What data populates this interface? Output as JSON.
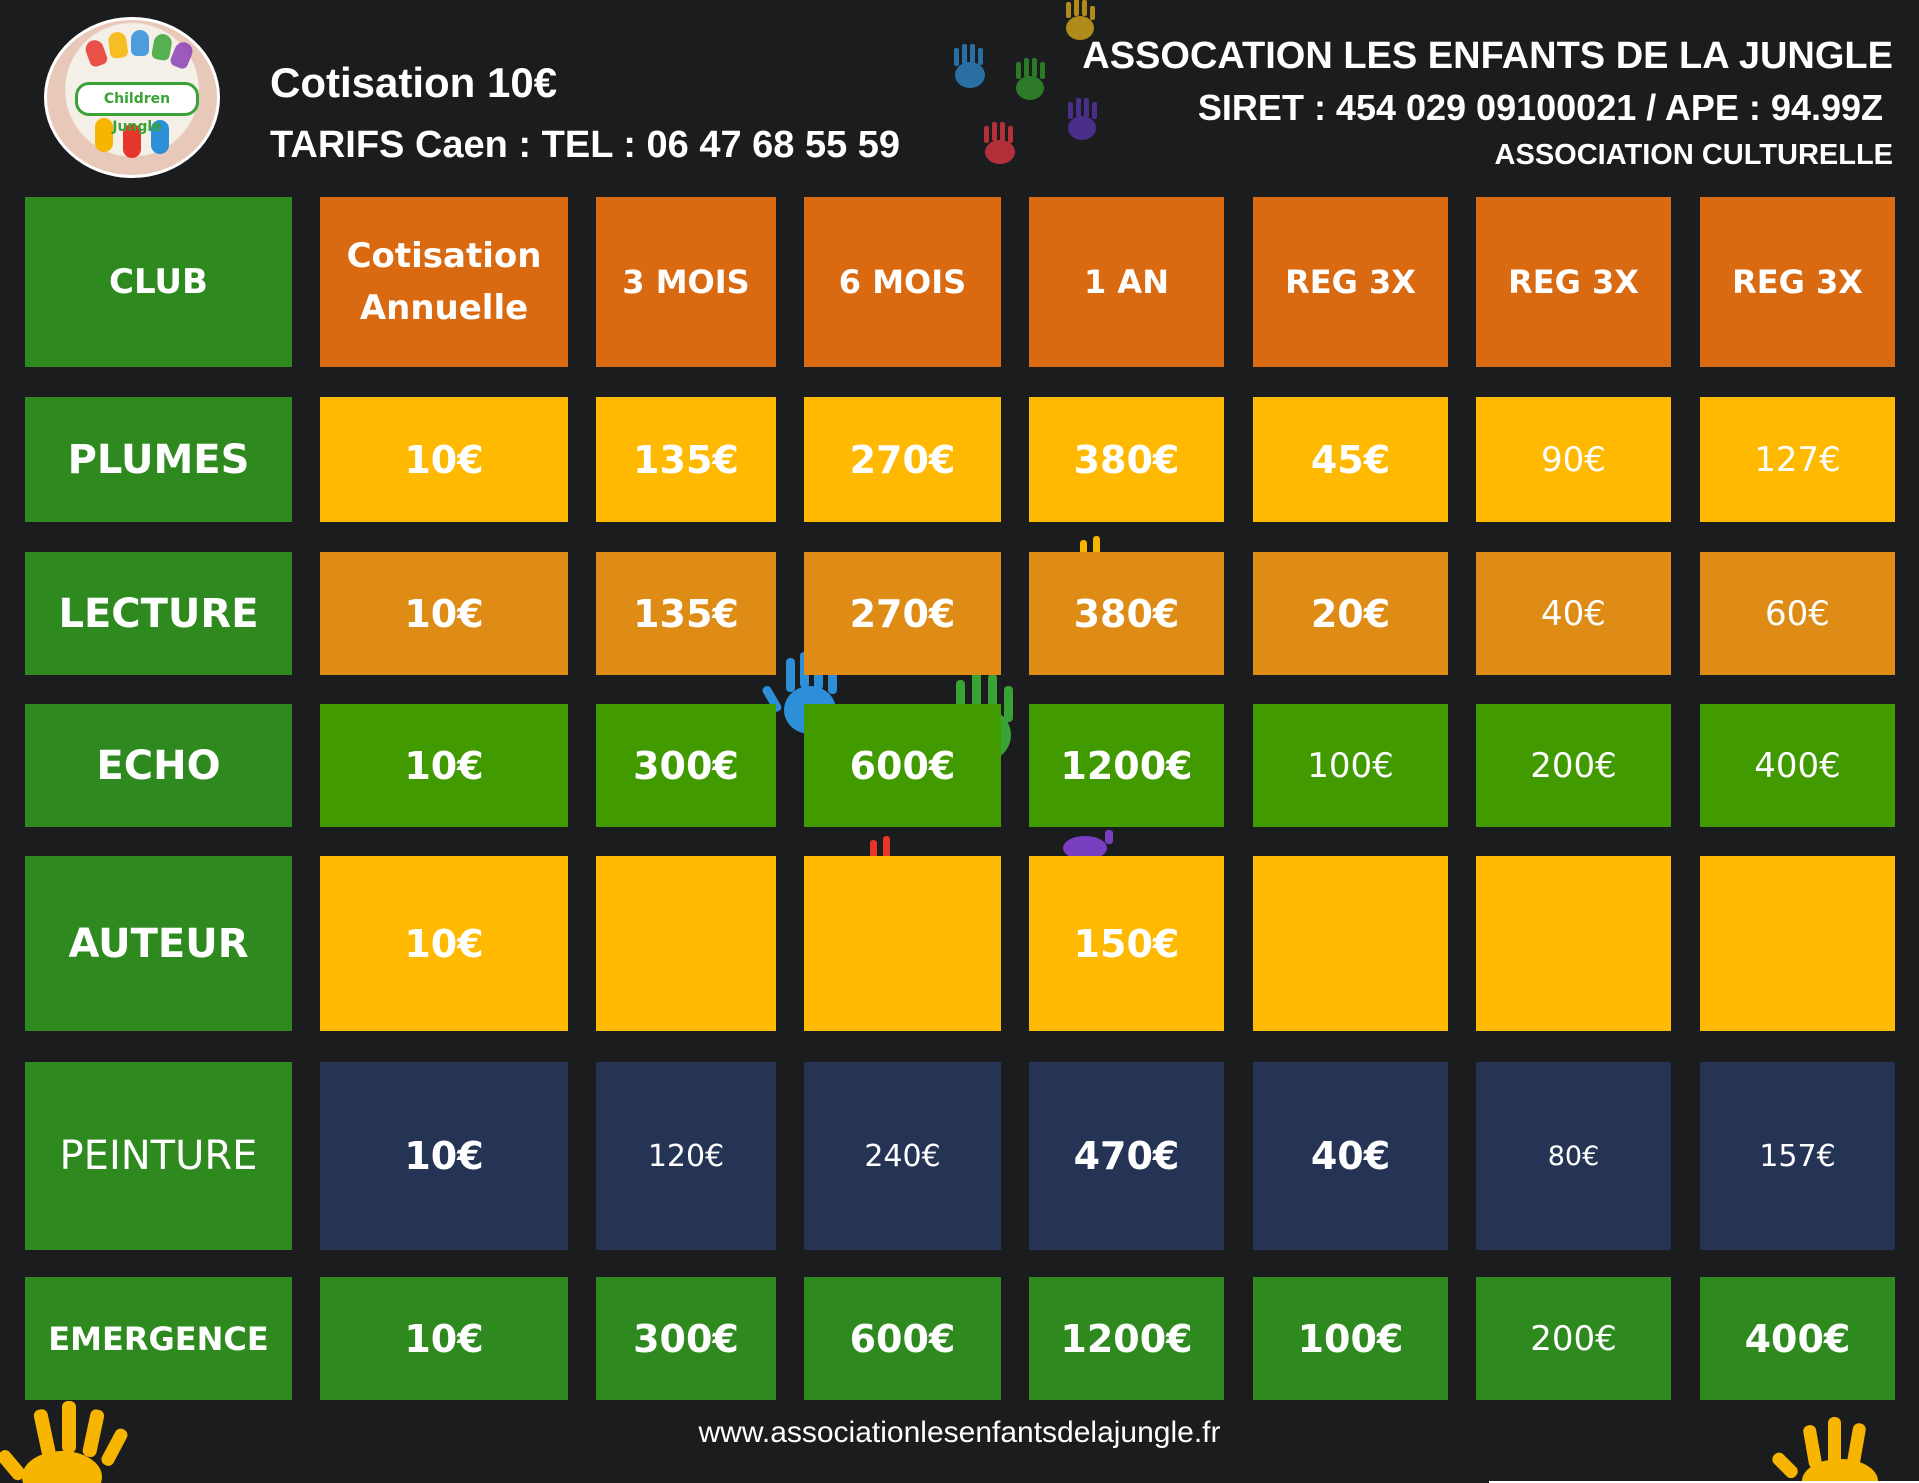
{
  "logo": {
    "text": "Children Jungle",
    "icon": "children-jungle-logo"
  },
  "header": {
    "line1": "Cotisation 10€",
    "line2": "TARIFS Caen : TEL : 06 47 68 55 59",
    "org_name": "ASSOCATION LES ENFANTS DE LA JUNGLE",
    "siret": "SIRET : 454 029 09100021 / APE : 94.99Z",
    "org_type": "ASSOCIATION CULTURELLE"
  },
  "table": {
    "columns": [
      {
        "line1": "CLUB",
        "line2": ""
      },
      {
        "line1": "Cotisation",
        "line2": "Annuelle"
      },
      {
        "line1": "3 MOIS",
        "line2": ""
      },
      {
        "line1": "6 MOIS",
        "line2": ""
      },
      {
        "line1": "1 AN",
        "line2": ""
      },
      {
        "line1": "REG 3X",
        "line2": ""
      },
      {
        "line1": "REG 3X",
        "line2": ""
      },
      {
        "line1": "REG 3X",
        "line2": ""
      }
    ],
    "rows": [
      {
        "club": "PLUMES",
        "values": [
          "10€",
          "135€",
          "270€",
          "380€",
          "45€",
          "90€",
          "127€"
        ]
      },
      {
        "club": "LECTURE",
        "values": [
          "10€",
          "135€",
          "270€",
          "380€",
          "20€",
          "40€",
          "60€"
        ]
      },
      {
        "club": "ECHO",
        "values": [
          "10€",
          "300€",
          "600€",
          "1200€",
          "100€",
          "200€",
          "400€"
        ]
      },
      {
        "club": "AUTEUR",
        "values": [
          "10€",
          "",
          "",
          "150€",
          "",
          "",
          ""
        ]
      },
      {
        "club": "PEINTURE",
        "values": [
          "10€",
          "120€",
          "240€",
          "470€",
          "40€",
          "80€",
          "157€"
        ]
      },
      {
        "club": "EMERGENCE",
        "values": [
          "10€",
          "300€",
          "600€",
          "1200€",
          "100€",
          "200€",
          "400€"
        ]
      }
    ]
  },
  "footer": {
    "url": "www.associationlesenfantsdelajungle.fr"
  },
  "colors": {
    "background": "#1b1c1e",
    "club_green": "#2e8a1e",
    "header_orange": "#da6a11",
    "yellow": "#ffb900",
    "amber": "#de8c16",
    "lime": "#409a00",
    "navy": "#253455"
  }
}
